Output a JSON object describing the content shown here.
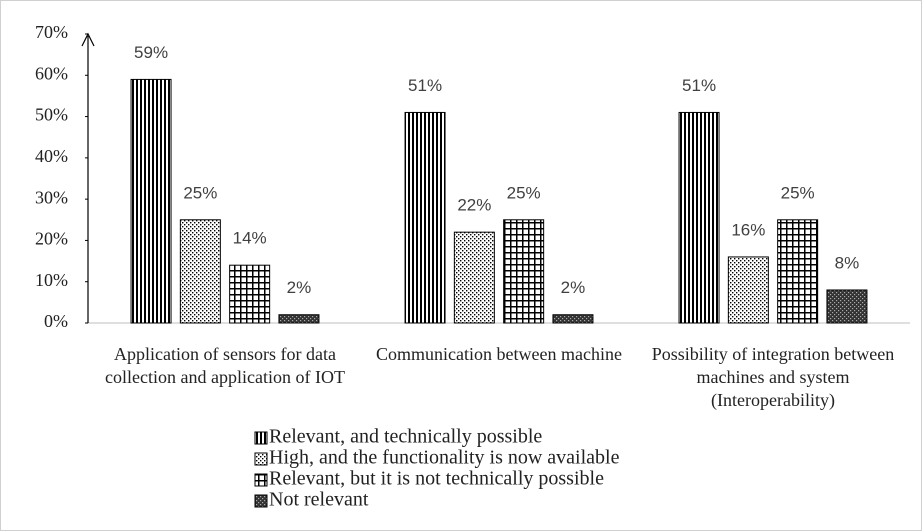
{
  "chart_data": {
    "type": "bar",
    "categories": [
      "Application of sensors for data collection and application of  IOT",
      "Communication between machine",
      "Possibility of integration between machines and system (Interoperability)"
    ],
    "series": [
      {
        "name": "Relevant, and technically possible",
        "color": "#000000",
        "pattern": "vlines",
        "values": [
          59,
          51,
          51
        ],
        "value_labels": [
          "59%",
          "51%",
          "51%"
        ]
      },
      {
        "name": "High, and the functionality is now available",
        "color": "#000000",
        "pattern": "dots",
        "values": [
          25,
          22,
          16
        ],
        "value_labels": [
          "25%",
          "22%",
          "16%"
        ]
      },
      {
        "name": "Relevant, but it is not technically possible",
        "color": "#000000",
        "pattern": "grid",
        "values": [
          14,
          25,
          25
        ],
        "value_labels": [
          "14%",
          "25%",
          "25%"
        ]
      },
      {
        "name": "Not relevant",
        "color": "#000000",
        "pattern": "checker",
        "values": [
          2,
          2,
          8
        ],
        "value_labels": [
          "2%",
          "2%",
          "8%"
        ]
      }
    ],
    "ylim": [
      0,
      70
    ],
    "yticks": [
      {
        "value": 0,
        "label": "0%"
      },
      {
        "value": 10,
        "label": "10%"
      },
      {
        "value": 20,
        "label": "20%"
      },
      {
        "value": 30,
        "label": "30%"
      },
      {
        "value": 40,
        "label": "40%"
      },
      {
        "value": 50,
        "label": "50%"
      },
      {
        "value": 60,
        "label": "60%"
      },
      {
        "value": 70,
        "label": "70%"
      }
    ],
    "grid": false,
    "legend": "bottom"
  }
}
